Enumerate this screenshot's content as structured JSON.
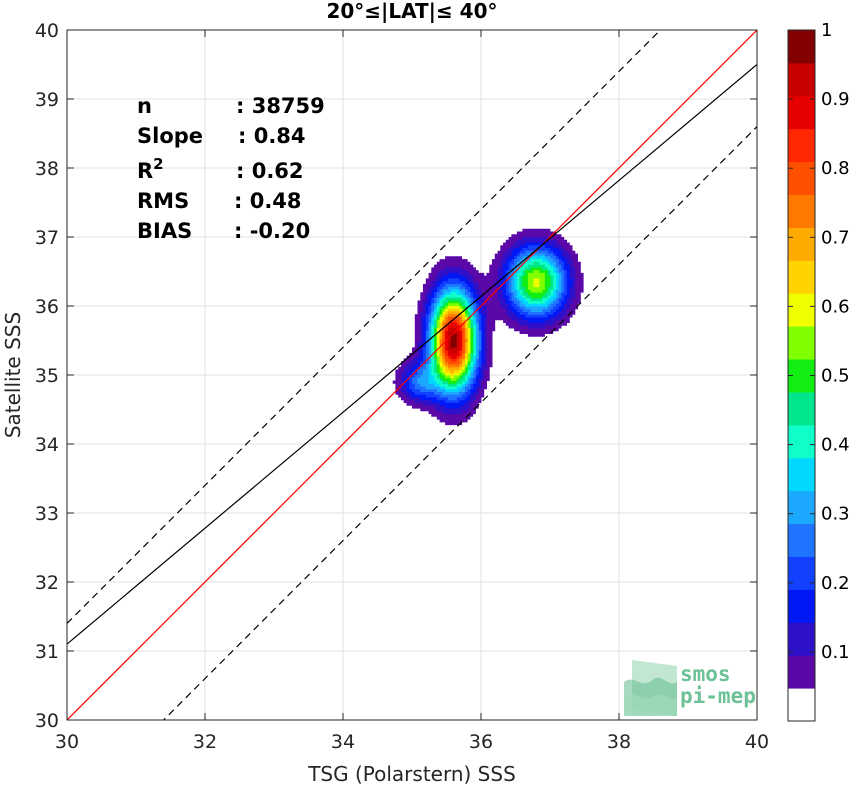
{
  "chart_data": {
    "type": "contour",
    "title": "20°≤|LAT|≤ 40°",
    "xlabel": "TSG (Polarstern) SSS",
    "ylabel": "Satellite SSS",
    "xlim": [
      30,
      40
    ],
    "ylim": [
      30,
      40
    ],
    "xticks": [
      30,
      32,
      34,
      36,
      38,
      40
    ],
    "yticks": [
      30,
      31,
      32,
      33,
      34,
      35,
      36,
      37,
      38,
      39,
      40
    ],
    "grid": true,
    "stats": [
      {
        "label": "n",
        "value": ": 38759"
      },
      {
        "label": "Slope",
        "value": ": 0.84"
      },
      {
        "label": "R",
        "sup": "2",
        "value": ": 0.62"
      },
      {
        "label": "RMS",
        "value": ": 0.48"
      },
      {
        "label": "BIAS",
        "value": ": -0.20"
      }
    ],
    "lines": [
      {
        "kind": "one-to-one",
        "color": "#ff0000",
        "slope": 1,
        "intercept": 0,
        "style": "solid"
      },
      {
        "kind": "fit",
        "color": "#000000",
        "slope": 0.84,
        "intercept": 5.9,
        "style": "solid"
      },
      {
        "kind": "upper-bound",
        "color": "#000000",
        "slope": 1,
        "intercept": 1.4,
        "style": "dashed"
      },
      {
        "kind": "lower-bound",
        "color": "#000000",
        "slope": 1,
        "intercept": -1.4,
        "style": "dashed"
      }
    ],
    "density_peaks": [
      {
        "x": 35.6,
        "y": 35.5,
        "sx": 0.23,
        "sy": 0.5,
        "amp": 1.0
      },
      {
        "x": 36.8,
        "y": 36.35,
        "sx": 0.3,
        "sy": 0.35,
        "amp": 0.6
      },
      {
        "x": 35.1,
        "y": 34.9,
        "sx": 0.2,
        "sy": 0.2,
        "amp": 0.25
      }
    ],
    "colorbar": {
      "ticks": [
        "0.1",
        "0.2",
        "0.3",
        "0.4",
        "0.5",
        "0.6",
        "0.7",
        "0.8",
        "0.9",
        "1"
      ],
      "colors": [
        "#ffffff",
        "#5a08a8",
        "#2d10c8",
        "#0018f4",
        "#1240ff",
        "#1e74ff",
        "#1ca8ff",
        "#00d8ff",
        "#10ffc8",
        "#00e68c",
        "#12ee12",
        "#80ff00",
        "#f0ff00",
        "#ffd200",
        "#ffaa00",
        "#ff7800",
        "#ff5000",
        "#ff2800",
        "#e60000",
        "#c80000",
        "#820000"
      ]
    }
  },
  "logo": {
    "line1": "smos",
    "line2": "pi-mep"
  }
}
